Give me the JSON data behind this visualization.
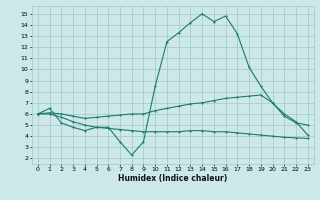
{
  "background_color": "#cce8e8",
  "grid_color": "#aacccc",
  "line_color": "#1a7a6e",
  "xlabel": "Humidex (Indice chaleur)",
  "xlim": [
    -0.5,
    23.5
  ],
  "ylim": [
    1.5,
    15.7
  ],
  "yticks": [
    2,
    3,
    4,
    5,
    6,
    7,
    8,
    9,
    10,
    11,
    12,
    13,
    14,
    15
  ],
  "xticks": [
    0,
    1,
    2,
    3,
    4,
    5,
    6,
    7,
    8,
    9,
    10,
    11,
    12,
    13,
    14,
    15,
    16,
    17,
    18,
    19,
    20,
    21,
    22,
    23
  ],
  "series1_x": [
    0,
    1,
    2,
    3,
    4,
    5,
    6,
    7,
    8,
    9,
    10,
    11,
    12,
    13,
    14,
    15,
    16,
    17,
    18,
    19,
    20,
    21,
    22,
    23
  ],
  "series1_y": [
    6.0,
    6.5,
    5.2,
    4.8,
    4.5,
    4.8,
    4.8,
    3.5,
    2.3,
    3.5,
    8.5,
    12.5,
    13.3,
    14.2,
    15.0,
    14.3,
    14.8,
    13.2,
    10.2,
    8.5,
    7.0,
    5.8,
    5.2,
    5.0
  ],
  "series2_x": [
    0,
    1,
    2,
    3,
    4,
    5,
    6,
    7,
    8,
    9,
    10,
    11,
    12,
    13,
    14,
    15,
    16,
    17,
    18,
    19,
    20,
    21,
    22,
    23
  ],
  "series2_y": [
    6.0,
    6.1,
    6.0,
    5.8,
    5.6,
    5.7,
    5.8,
    5.9,
    6.0,
    6.0,
    6.3,
    6.5,
    6.7,
    6.9,
    7.0,
    7.2,
    7.4,
    7.5,
    7.6,
    7.7,
    7.0,
    6.0,
    5.3,
    4.1
  ],
  "series3_x": [
    0,
    1,
    2,
    3,
    4,
    5,
    6,
    7,
    8,
    9,
    10,
    11,
    12,
    13,
    14,
    15,
    16,
    17,
    18,
    19,
    20,
    21,
    22,
    23
  ],
  "series3_y": [
    6.0,
    6.0,
    5.7,
    5.3,
    5.0,
    4.8,
    4.7,
    4.6,
    4.5,
    4.4,
    4.4,
    4.4,
    4.4,
    4.5,
    4.5,
    4.4,
    4.4,
    4.3,
    4.2,
    4.1,
    4.0,
    3.9,
    3.85,
    3.8
  ]
}
